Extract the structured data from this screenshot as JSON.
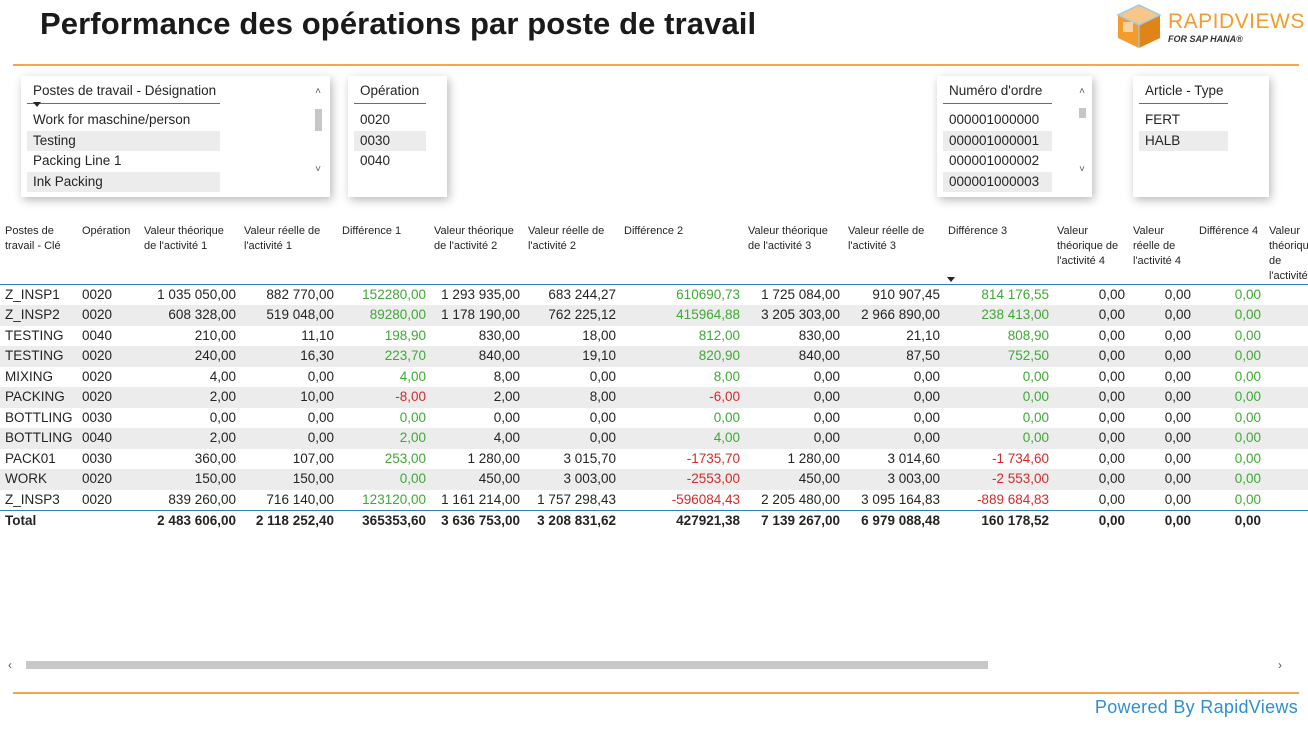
{
  "title": "Performance des opérations par poste de travail",
  "logo": {
    "brand": "RAPIDVIEWS",
    "sub": "FOR SAP HANA®",
    "color": "#f39c2c"
  },
  "colors": {
    "accent_rule": "#f5a54a",
    "positive": "#3ea935",
    "negative": "#d62a2a",
    "header_line": "#2c7fb8",
    "powered": "#2f8fcf"
  },
  "slicers": {
    "workcenter": {
      "title": "Postes de travail - Désignation",
      "items": [
        "Work for maschine/person",
        "Testing",
        "Packing Line 1",
        "Ink Packing"
      ]
    },
    "operation": {
      "title": "Opération",
      "items": [
        "0020",
        "0030",
        "0040"
      ]
    },
    "order": {
      "title": "Numéro d'ordre",
      "items": [
        "000001000000",
        "000001000001",
        "000001000002",
        "000001000003"
      ]
    },
    "article": {
      "title": "Article - Type",
      "items": [
        "FERT",
        "HALB"
      ]
    }
  },
  "table": {
    "headers": [
      "Postes de travail - Clé",
      "Opération",
      "Valeur théorique de l'activité 1",
      "Valeur réelle de l'activité 1",
      "Différence 1",
      "Valeur théorique de l'activité 2",
      "Valeur réelle de l'activité 2",
      "Différence 2",
      "Valeur théorique de l'activité 3",
      "Valeur réelle de l'activité 3",
      "Différence 3",
      "Valeur théorique de l'activité 4",
      "Valeur réelle de l'activité 4",
      "Différence 4",
      "Valeur théorique de l'activité"
    ],
    "rows": [
      [
        "Z_INSP1",
        "0020",
        "1 035 050,00",
        "882 770,00",
        "152280,00",
        "1 293 935,00",
        "683 244,27",
        "610690,73",
        "1 725 084,00",
        "910 907,45",
        "814 176,55",
        "0,00",
        "0,00",
        "0,00",
        ""
      ],
      [
        "Z_INSP2",
        "0020",
        "608 328,00",
        "519 048,00",
        "89280,00",
        "1 178 190,00",
        "762 225,12",
        "415964,88",
        "3 205 303,00",
        "2 966 890,00",
        "238 413,00",
        "0,00",
        "0,00",
        "0,00",
        ""
      ],
      [
        "TESTING",
        "0040",
        "210,00",
        "11,10",
        "198,90",
        "830,00",
        "18,00",
        "812,00",
        "830,00",
        "21,10",
        "808,90",
        "0,00",
        "0,00",
        "0,00",
        ""
      ],
      [
        "TESTING",
        "0020",
        "240,00",
        "16,30",
        "223,70",
        "840,00",
        "19,10",
        "820,90",
        "840,00",
        "87,50",
        "752,50",
        "0,00",
        "0,00",
        "0,00",
        ""
      ],
      [
        "MIXING",
        "0020",
        "4,00",
        "0,00",
        "4,00",
        "8,00",
        "0,00",
        "8,00",
        "0,00",
        "0,00",
        "0,00",
        "0,00",
        "0,00",
        "0,00",
        ""
      ],
      [
        "PACKING",
        "0020",
        "2,00",
        "10,00",
        "-8,00",
        "2,00",
        "8,00",
        "-6,00",
        "0,00",
        "0,00",
        "0,00",
        "0,00",
        "0,00",
        "0,00",
        ""
      ],
      [
        "BOTTLING",
        "0030",
        "0,00",
        "0,00",
        "0,00",
        "0,00",
        "0,00",
        "0,00",
        "0,00",
        "0,00",
        "0,00",
        "0,00",
        "0,00",
        "0,00",
        ""
      ],
      [
        "BOTTLING",
        "0040",
        "2,00",
        "0,00",
        "2,00",
        "4,00",
        "0,00",
        "4,00",
        "0,00",
        "0,00",
        "0,00",
        "0,00",
        "0,00",
        "0,00",
        ""
      ],
      [
        "PACK01",
        "0030",
        "360,00",
        "107,00",
        "253,00",
        "1 280,00",
        "3 015,70",
        "-1735,70",
        "1 280,00",
        "3 014,60",
        "-1 734,60",
        "0,00",
        "0,00",
        "0,00",
        ""
      ],
      [
        "WORK",
        "0020",
        "150,00",
        "150,00",
        "0,00",
        "450,00",
        "3 003,00",
        "-2553,00",
        "450,00",
        "3 003,00",
        "-2 553,00",
        "0,00",
        "0,00",
        "0,00",
        ""
      ],
      [
        "Z_INSP3",
        "0020",
        "839 260,00",
        "716 140,00",
        "123120,00",
        "1 161 214,00",
        "1 757 298,43",
        "-596084,43",
        "2 205 480,00",
        "3 095 164,83",
        "-889 684,83",
        "0,00",
        "0,00",
        "0,00",
        ""
      ]
    ],
    "total": [
      "Total",
      "",
      "2 483 606,00",
      "2 118 252,40",
      "365353,60",
      "3 636 753,00",
      "3 208 831,62",
      "427921,38",
      "7 139 267,00",
      "6 979 088,48",
      "160 178,52",
      "0,00",
      "0,00",
      "0,00",
      ""
    ],
    "diff_columns": [
      4,
      7,
      10,
      13
    ]
  },
  "footer": {
    "powered": "Powered By RapidViews"
  }
}
